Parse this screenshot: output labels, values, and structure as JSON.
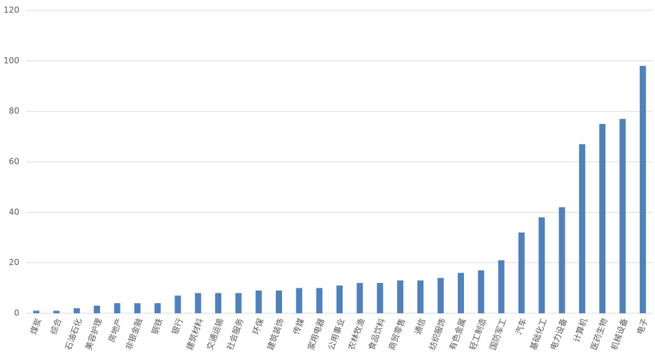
{
  "chart_data": {
    "type": "bar",
    "categories": [
      "煤炭",
      "综合",
      "石油石化",
      "美容护理",
      "房地产",
      "非银金融",
      "钢铁",
      "银行",
      "建筑材料",
      "交通运输",
      "社会服务",
      "环保",
      "建筑装饰",
      "传媒",
      "家用电器",
      "公用事业",
      "农林牧渔",
      "食品饮料",
      "商贸零售",
      "通信",
      "纺织服饰",
      "有色金属",
      "轻工制造",
      "国防军工",
      "汽车",
      "基础化工",
      "电力设备",
      "计算机",
      "医药生物",
      "机械设备",
      "电子"
    ],
    "values": [
      1,
      1,
      2,
      3,
      4,
      4,
      4,
      7,
      8,
      8,
      8,
      9,
      9,
      10,
      10,
      11,
      12,
      12,
      13,
      13,
      14,
      16,
      17,
      21,
      32,
      38,
      42,
      67,
      75,
      77,
      98
    ],
    "color": "#4f81bd",
    "ylim": [
      0,
      120
    ],
    "yticks": [
      0,
      20,
      40,
      60,
      80,
      100,
      120
    ],
    "grid": true
  }
}
